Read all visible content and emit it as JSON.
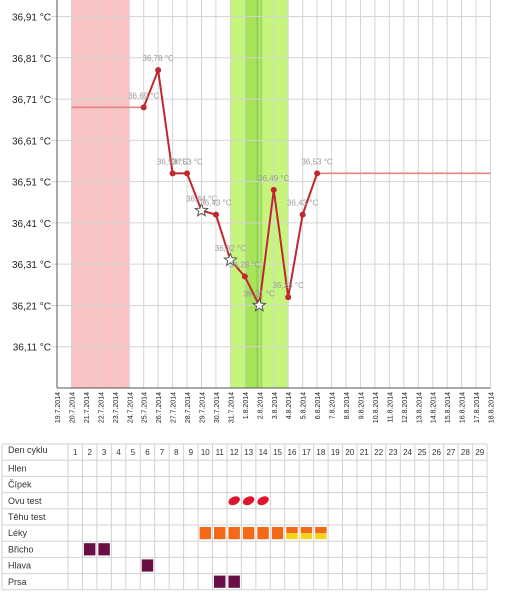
{
  "chart_data": {
    "type": "line",
    "title": "",
    "xlabel": "",
    "ylabel": "",
    "ylim": [
      36.01,
      36.95
    ],
    "y_ticks": [
      "36,91 °C",
      "36,81 °C",
      "36,71 °C",
      "36,61 °C",
      "36,51 °C",
      "36,41 °C",
      "36,31 °C",
      "36,21 °C",
      "36,11 °C"
    ],
    "x_dates": [
      "19.7.2014",
      "20.7.2014",
      "21.7.2014",
      "22.7.2014",
      "23.7.2014",
      "24.7.2014",
      "25.7.2014",
      "26.7.2014",
      "27.7.2014",
      "28.7.2014",
      "29.7.2014",
      "30.7.2014",
      "31.7.2014",
      "1.8.2014",
      "2.8.2014",
      "3.8.2014",
      "4.8.2014",
      "5.8.2014",
      "6.8.2014",
      "7.8.2014",
      "8.8.2014",
      "9.8.2014",
      "10.8.2014",
      "11.8.2014",
      "12.8.2014",
      "13.8.2014",
      "14.8.2014",
      "15.8.2014",
      "16.8.2014",
      "17.8.2014",
      "18.8.2014"
    ],
    "points": [
      {
        "x": "25.7.2014",
        "y": 36.69,
        "label": "36,69 °C",
        "marker": "dot"
      },
      {
        "x": "26.7.2014",
        "y": 36.78,
        "label": "36,78 °C",
        "marker": "dot"
      },
      {
        "x": "27.7.2014",
        "y": 36.53,
        "label": "36,53 °C",
        "marker": "dot"
      },
      {
        "x": "28.7.2014",
        "y": 36.53,
        "label": "36,53 °C",
        "marker": "dot"
      },
      {
        "x": "29.7.2014",
        "y": 36.44,
        "label": "36,44 °C",
        "marker": "star"
      },
      {
        "x": "30.7.2014",
        "y": 36.43,
        "label": "36,43 °C",
        "marker": "dot"
      },
      {
        "x": "31.7.2014",
        "y": 36.32,
        "label": "36,32 °C",
        "marker": "star"
      },
      {
        "x": "1.8.2014",
        "y": 36.28,
        "label": "36,28 °C",
        "marker": "dot"
      },
      {
        "x": "2.8.2014",
        "y": 36.21,
        "label": "36,21 °C",
        "marker": "star"
      },
      {
        "x": "3.8.2014",
        "y": 36.49,
        "label": "36,49 °C",
        "marker": "dot"
      },
      {
        "x": "4.8.2014",
        "y": 36.23,
        "label": "36,23 °C",
        "marker": "dot"
      },
      {
        "x": "5.8.2014",
        "y": 36.43,
        "label": "36,43 °C",
        "marker": "dot"
      },
      {
        "x": "6.8.2014",
        "y": 36.53,
        "label": "36,53 °C",
        "marker": "dot"
      }
    ],
    "coverline_before": {
      "from": "20.7.2014",
      "to": "25.7.2014",
      "y": 36.69
    },
    "coverline_after": {
      "from": "6.8.2014",
      "to": "18.8.2014",
      "y": 36.53
    },
    "period_band": {
      "from": "20.7.2014",
      "to": "24.7.2014",
      "color": "#fbc4c4"
    },
    "fertile_band": {
      "from": "31.7.2014",
      "to": "4.8.2014",
      "color": "#c6f57e"
    },
    "fertile_peak_band": {
      "from": "1.8.2014",
      "to": "2.8.2014",
      "color": "#a6e45a"
    },
    "ovulation_line": {
      "x": "2.8.2014",
      "color": "#7fcf2e"
    },
    "grid": true,
    "line_color": "#c0282d"
  },
  "cycle_table": {
    "header_label": "Den cyklu",
    "days": [
      "1",
      "2",
      "3",
      "4",
      "5",
      "6",
      "7",
      "8",
      "9",
      "10",
      "11",
      "12",
      "13",
      "14",
      "15",
      "16",
      "17",
      "18",
      "19",
      "20",
      "21",
      "22",
      "23",
      "24",
      "25",
      "26",
      "27",
      "28",
      "29"
    ],
    "rows": [
      {
        "label": "Hlen",
        "cells": []
      },
      {
        "label": "Čípek",
        "cells": []
      },
      {
        "label": "Ovu test",
        "cells": [
          {
            "day": 12,
            "kind": "drop"
          },
          {
            "day": 13,
            "kind": "drop"
          },
          {
            "day": 14,
            "kind": "drop"
          }
        ]
      },
      {
        "label": "Těhu test",
        "cells": []
      },
      {
        "label": "Léky",
        "cells": [
          {
            "day": 10,
            "kind": "orange"
          },
          {
            "day": 11,
            "kind": "orange"
          },
          {
            "day": 12,
            "kind": "orange"
          },
          {
            "day": 13,
            "kind": "orange"
          },
          {
            "day": 14,
            "kind": "orange"
          },
          {
            "day": 15,
            "kind": "orange"
          },
          {
            "day": 16,
            "kind": "split"
          },
          {
            "day": 17,
            "kind": "split"
          },
          {
            "day": 18,
            "kind": "split"
          }
        ]
      },
      {
        "label": "Břicho",
        "cells": [
          {
            "day": 2,
            "kind": "purple"
          },
          {
            "day": 3,
            "kind": "purple"
          }
        ]
      },
      {
        "label": "Hlava",
        "cells": [
          {
            "day": 6,
            "kind": "purple"
          }
        ]
      },
      {
        "label": "Prsa",
        "cells": [
          {
            "day": 11,
            "kind": "purple"
          },
          {
            "day": 12,
            "kind": "purple"
          }
        ]
      }
    ],
    "colors": {
      "orange": "#f26a18",
      "yellow": "#f7d21f",
      "purple": "#6a0f45",
      "drop": "#e0142a"
    }
  }
}
